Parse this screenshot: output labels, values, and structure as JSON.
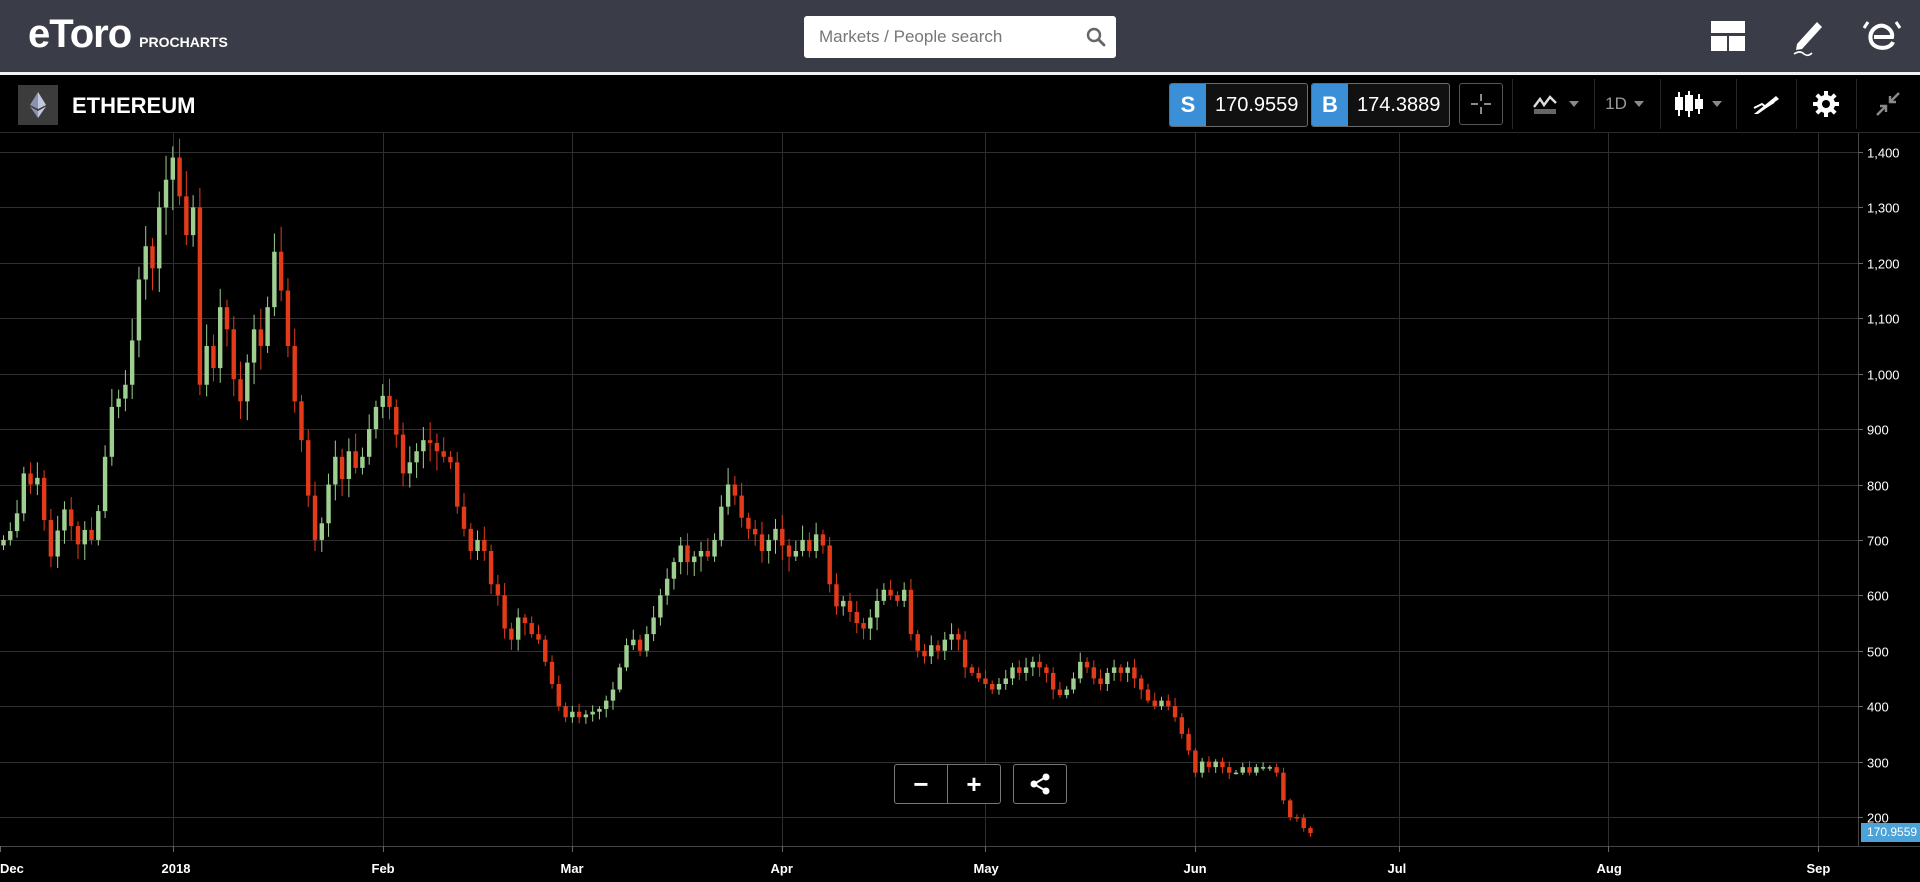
{
  "topbar": {
    "logo_text": "eToro",
    "brand_sub": "PROCHARTS",
    "search_placeholder": "Markets / People search",
    "icons": [
      "layout-icon",
      "pencil-icon",
      "etoro-e-icon",
      "search-icon"
    ]
  },
  "instrument": {
    "name": "ETHEREUM",
    "sell_label": "S",
    "sell_price": "170.9559",
    "buy_label": "B",
    "buy_price": "174.3889",
    "interval": "1D"
  },
  "colors": {
    "up": "#9ecf91",
    "down": "#e33b1a",
    "grid": "#2e2e2e",
    "accent": "#3a8fd6",
    "topbar": "#3a3d48"
  },
  "chart_data": {
    "type": "candlestick",
    "title": "ETHEREUM",
    "ylim": [
      140,
      1420
    ],
    "y_ticks": [
      200,
      300,
      400,
      500,
      600,
      700,
      800,
      900,
      1000,
      1100,
      1200,
      1300,
      1400
    ],
    "y_tick_labels": [
      "200",
      "300",
      "400",
      "500",
      "600",
      "700",
      "800",
      "900",
      "1,000",
      "1,100",
      "1,200",
      "1,300",
      "1,400"
    ],
    "x_labels": [
      "Dec",
      "2018",
      "Feb",
      "Mar",
      "Apr",
      "May",
      "Jun",
      "Jul",
      "Aug",
      "Sep"
    ],
    "x_label_days": [
      -0.5,
      25,
      56,
      84,
      115,
      145,
      176,
      206,
      237,
      268
    ],
    "last_price": "170.9559",
    "close_series": [
      700,
      716,
      748,
      820,
      800,
      812,
      736,
      670,
      717,
      755,
      725,
      692,
      718,
      700,
      752,
      850,
      940,
      955,
      980,
      1060,
      1170,
      1230,
      1190,
      1300,
      1350,
      1390,
      1320,
      1250,
      1300,
      980,
      1050,
      1010,
      1120,
      1080,
      990,
      950,
      1020,
      1080,
      1050,
      1120,
      1220,
      1150,
      1050,
      950,
      880,
      780,
      700,
      730,
      800,
      850,
      810,
      860,
      830,
      850,
      900,
      940,
      960,
      940,
      890,
      820,
      840,
      860,
      880,
      875,
      860,
      850,
      840,
      760,
      720,
      680,
      700,
      680,
      620,
      600,
      540,
      520,
      560,
      550,
      530,
      520,
      480,
      440,
      400,
      380,
      390,
      380,
      385,
      390,
      395,
      410,
      430,
      470,
      510,
      520,
      500,
      530,
      560,
      600,
      630,
      660,
      690,
      660,
      670,
      680,
      670,
      700,
      760,
      800,
      780,
      740,
      720,
      710,
      680,
      700,
      720,
      690,
      670,
      680,
      700,
      680,
      710,
      690,
      620,
      580,
      590,
      570,
      550,
      540,
      560,
      590,
      610,
      600,
      590,
      610,
      530,
      500,
      490,
      510,
      500,
      520,
      530,
      520,
      470,
      460,
      450,
      440,
      430,
      440,
      450,
      470,
      460,
      470,
      480,
      470,
      460,
      430,
      420,
      430,
      450,
      480,
      470,
      450,
      440,
      460,
      470,
      460,
      470,
      450,
      430,
      410,
      400,
      410,
      400,
      380,
      350,
      320,
      280,
      300,
      290,
      300,
      290,
      280,
      280,
      290,
      280,
      290,
      290,
      290,
      280,
      230,
      200,
      198,
      180,
      171
    ]
  },
  "chart_controls": {
    "zoom_out": "−",
    "zoom_in": "+"
  }
}
